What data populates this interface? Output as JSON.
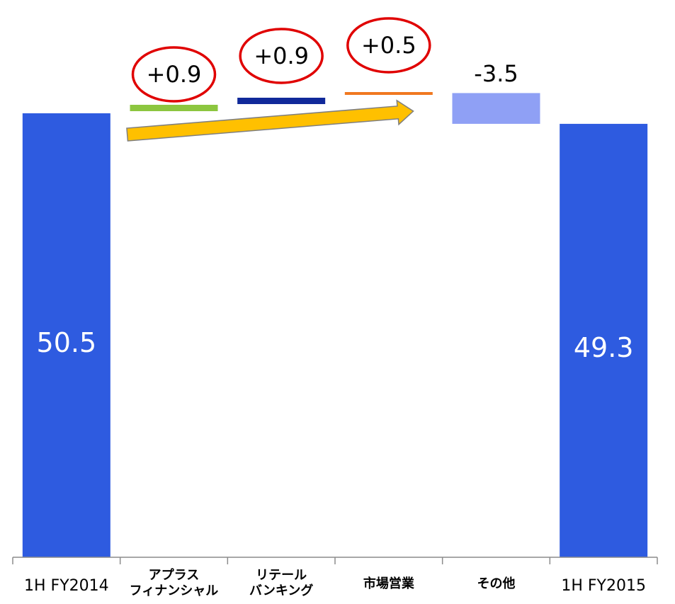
{
  "chart_data": {
    "type": "waterfall",
    "title": "",
    "xlabel": "",
    "ylabel": "",
    "ylim": [
      0,
      51.5
    ],
    "grid": false,
    "legend": "none",
    "categories": [
      {
        "lines": [
          "1H FY2014"
        ]
      },
      {
        "lines": [
          "アプラス",
          "フィナンシャル"
        ]
      },
      {
        "lines": [
          "リテール",
          "バンキング"
        ]
      },
      {
        "lines": [
          "市場営業"
        ]
      },
      {
        "lines": [
          "その他"
        ]
      },
      {
        "lines": [
          "1H FY2015"
        ]
      }
    ],
    "steps": [
      {
        "kind": "total",
        "value": 50.5,
        "label": "50.5",
        "color": "#2E5BE0",
        "circled": false
      },
      {
        "kind": "delta",
        "value": 0.9,
        "label": "+0.9",
        "color": "#8CC63F",
        "circled": true
      },
      {
        "kind": "delta",
        "value": 0.9,
        "label": "+0.9",
        "color": "#10299A",
        "circled": true
      },
      {
        "kind": "delta",
        "value": 0.5,
        "label": "+0.5",
        "color": "#F07820",
        "circled": true
      },
      {
        "kind": "delta",
        "value": -3.5,
        "label": "-3.5",
        "color": "#8FA0F5",
        "circled": false
      },
      {
        "kind": "total",
        "value": 49.3,
        "label": "49.3",
        "color": "#2E5BE0",
        "circled": false
      }
    ],
    "annotation": {
      "shape": "arrow",
      "color": "#FFC000",
      "outline": "#7F7F7F",
      "from_category": 1,
      "to_category": 3
    },
    "circle_color": "#E00000",
    "axis_color": "#8C8C8C"
  }
}
